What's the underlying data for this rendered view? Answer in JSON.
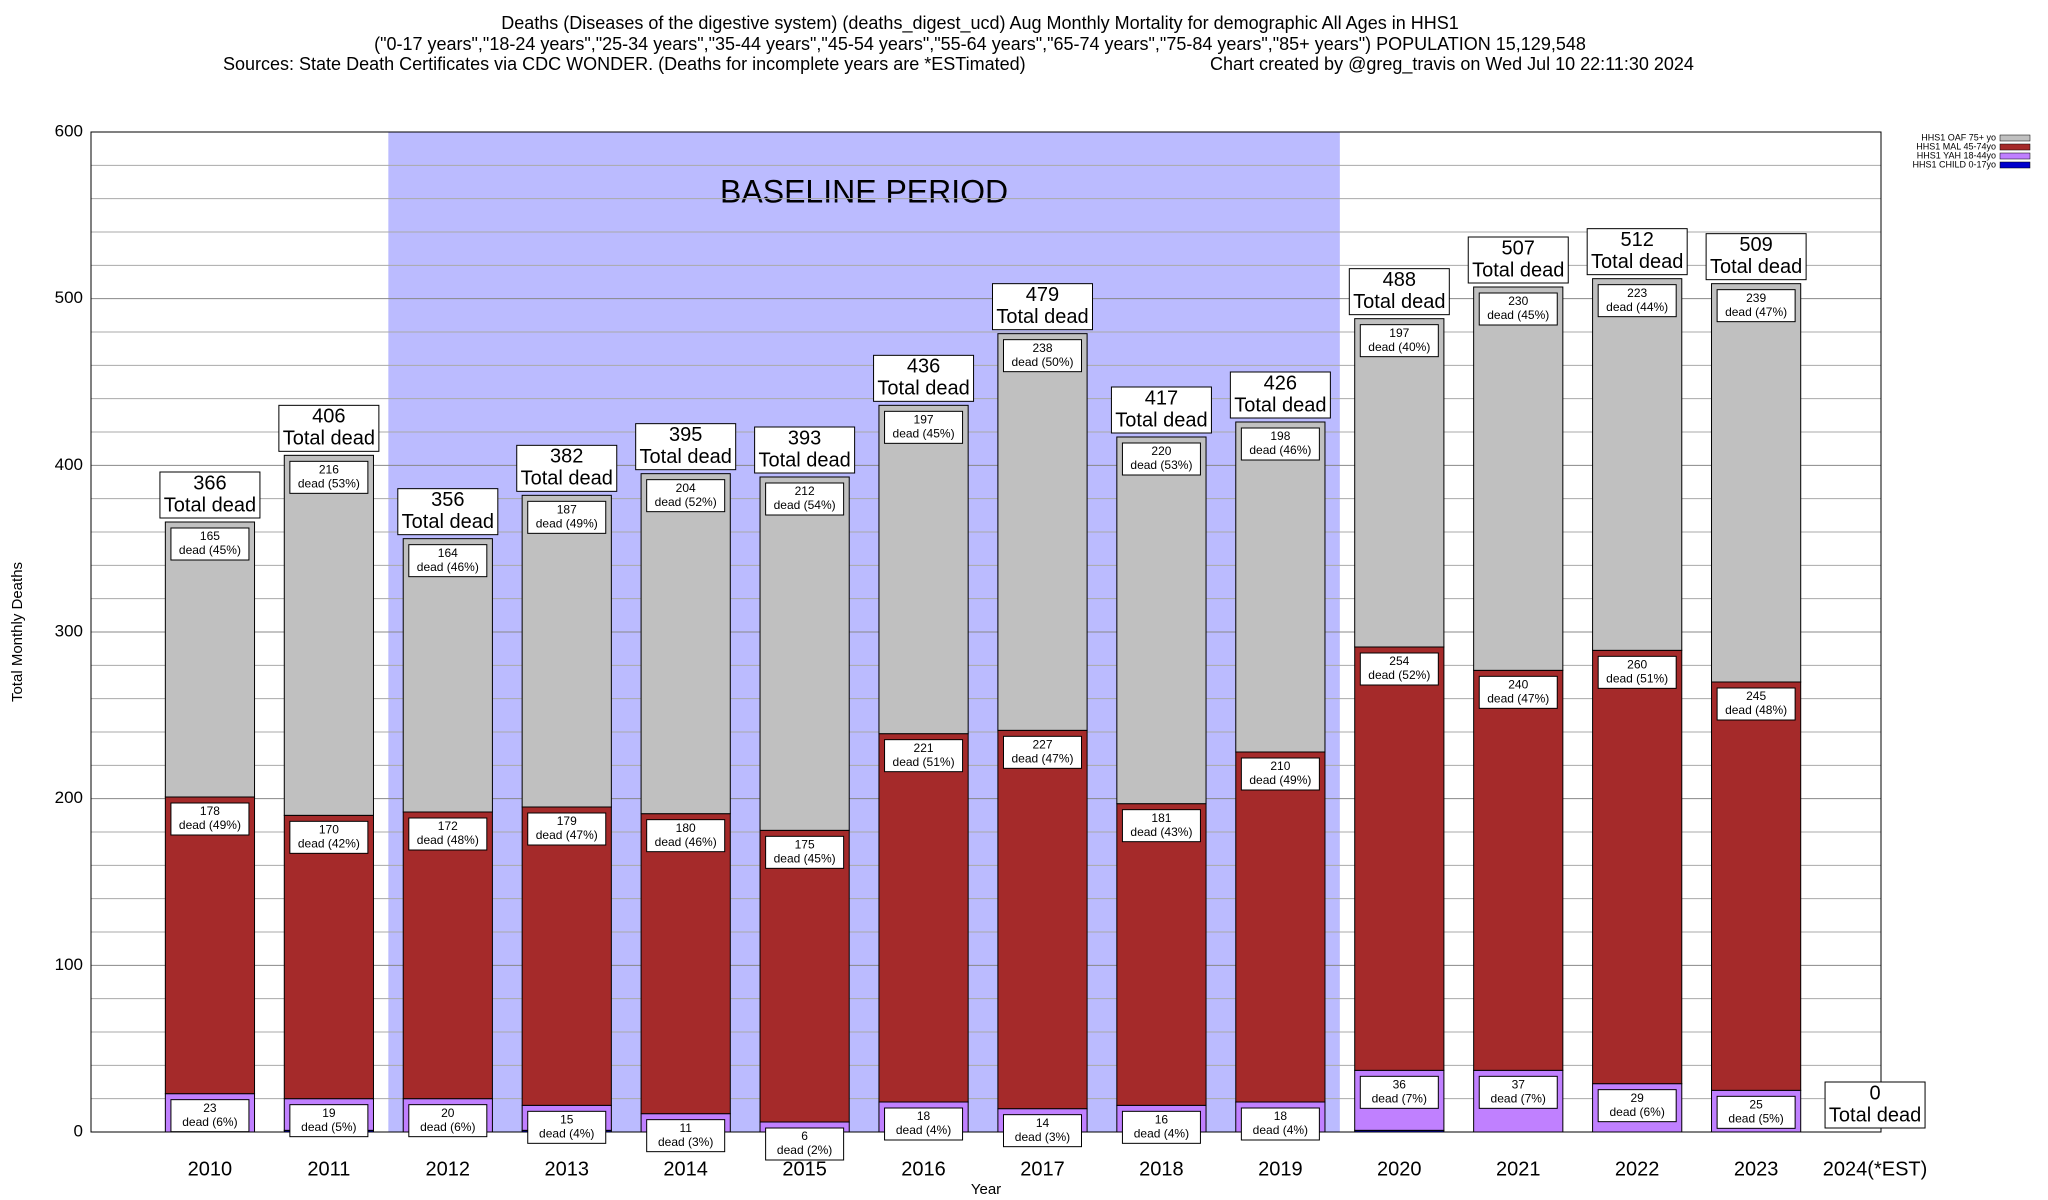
{
  "chart_data": {
    "type": "bar",
    "stacked": true,
    "title": [
      "Deaths (Diseases of the digestive system) (deaths_digest_ucd) Aug Monthly Mortality for demographic All Ages in HHS1",
      "(\"0-17 years\",\"18-24 years\",\"25-34 years\",\"35-44 years\",\"45-54 years\",\"55-64 years\",\"65-74 years\",\"75-84 years\",\"85+ years\") POPULATION 15,129,548"
    ],
    "source": "Sources: State Death Certificates via CDC WONDER. (Deaths for incomplete years are *ESTimated)",
    "credit": "Chart created by @greg_travis on Wed Jul 10 22:11:30 2024",
    "x_label": "Year",
    "y_label": "Total Monthly Deaths",
    "categories": [
      "2010",
      "2011",
      "2012",
      "2013",
      "2014",
      "2015",
      "2016",
      "2017",
      "2018",
      "2019",
      "2020",
      "2021",
      "2022",
      "2023",
      "2024(*EST)"
    ],
    "series": [
      {
        "name": "HHS1 OAF 75+ yo",
        "color": "#c0c0c0",
        "values": [
          165,
          216,
          164,
          187,
          204,
          212,
          197,
          238,
          220,
          198,
          197,
          230,
          223,
          239,
          0
        ],
        "pct_labels": [
          "dead (45%)",
          "dead (53%)",
          "dead (46%)",
          "dead (49%)",
          "dead (52%)",
          "dead (54%)",
          "dead (45%)",
          "dead (50%)",
          "dead (53%)",
          "dead (46%)",
          "dead (40%)",
          "dead (45%)",
          "dead (44%)",
          "dead (47%)",
          null
        ]
      },
      {
        "name": "HHS1 MAL 45-74yo",
        "color": "#a52a2a",
        "values": [
          178,
          170,
          172,
          179,
          180,
          175,
          221,
          227,
          181,
          210,
          254,
          240,
          260,
          245,
          0
        ],
        "pct_labels": [
          "dead (49%)",
          "dead (42%)",
          "dead (48%)",
          "dead (47%)",
          "dead (46%)",
          "dead (45%)",
          "dead (51%)",
          "dead (47%)",
          "dead (43%)",
          "dead (49%)",
          "dead (52%)",
          "dead (47%)",
          "dead (51%)",
          "dead (48%)",
          null
        ]
      },
      {
        "name": "HHS1 YAH 18-44yo",
        "color": "#c080ff",
        "values": [
          23,
          19,
          20,
          15,
          11,
          6,
          18,
          14,
          16,
          18,
          36,
          37,
          29,
          25,
          0
        ],
        "pct_labels": [
          "dead (6%)",
          "dead (5%)",
          "dead (6%)",
          "dead (4%)",
          "dead (3%)",
          "dead (2%)",
          "dead (4%)",
          "dead (3%)",
          "dead (4%)",
          "dead (4%)",
          "dead (7%)",
          "dead (7%)",
          "dead (6%)",
          "dead (5%)",
          null
        ]
      },
      {
        "name": "HHS1 CHILD 0-17yo",
        "color": "#0000cc",
        "values": [
          0,
          1,
          0,
          1,
          0,
          0,
          0,
          0,
          0,
          0,
          1,
          0,
          0,
          0,
          0
        ]
      }
    ],
    "totals": [
      366,
      406,
      356,
      382,
      395,
      393,
      436,
      479,
      417,
      426,
      488,
      507,
      512,
      509,
      0
    ],
    "total_label": "Total dead",
    "baseline": {
      "label": "BASELINE PERIOD",
      "start": "2012",
      "end": "2019",
      "color": "#bbbbff"
    },
    "ylim": [
      0,
      600
    ],
    "yticks": [
      0,
      100,
      200,
      300,
      400,
      500,
      600
    ],
    "minor_yticks": [
      20,
      40,
      60,
      80,
      120,
      140,
      160,
      180,
      220,
      240,
      260,
      280,
      320,
      340,
      360,
      380,
      420,
      440,
      460,
      480,
      520,
      540,
      560,
      580
    ],
    "grid": true,
    "legend": "top-right"
  }
}
